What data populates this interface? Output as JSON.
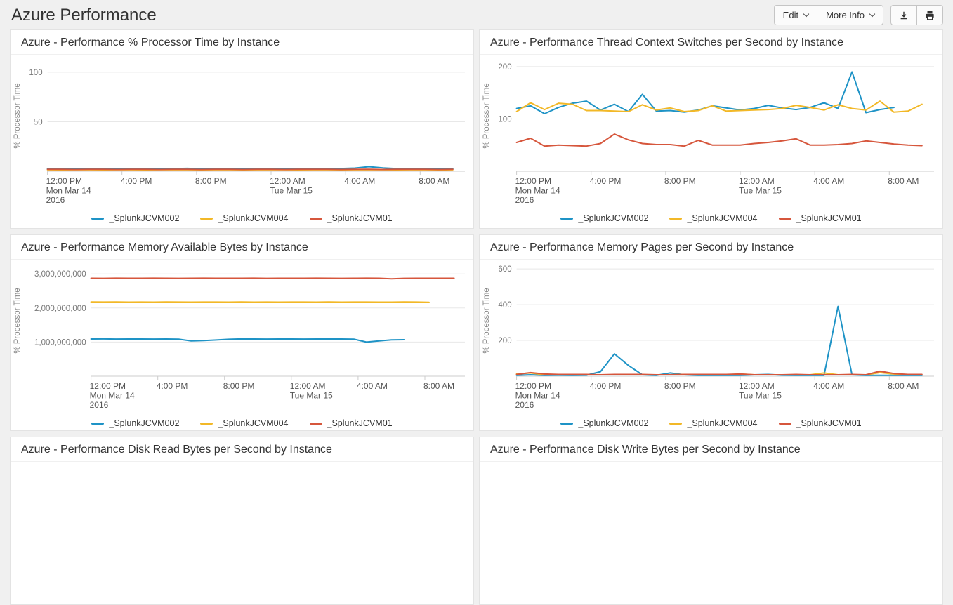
{
  "header": {
    "title": "Azure Performance",
    "edit_label": "Edit",
    "more_info_label": "More Info",
    "icons": {
      "caret": "chevron-down",
      "export": "download-icon",
      "print": "print-icon"
    }
  },
  "palette": {
    "series1": "#1e93c6",
    "series2": "#f2b827",
    "series3": "#d6563c"
  },
  "chart_data": [
    {
      "type": "line",
      "title": "Azure - Performance % Processor Time by Instance",
      "ylabel": "% Processor Time",
      "ylim": [
        0,
        112
      ],
      "yticks": [
        50,
        100
      ],
      "comma_format": false,
      "xlim": [
        0,
        22.4
      ],
      "xticks": [
        {
          "pos": 0,
          "lines": [
            "12:00 PM",
            "Mon Mar 14",
            "2016"
          ]
        },
        {
          "pos": 4,
          "lines": [
            "4:00 PM"
          ]
        },
        {
          "pos": 8,
          "lines": [
            "8:00 PM"
          ]
        },
        {
          "pos": 12,
          "lines": [
            "12:00 AM",
            "Tue Mar 15"
          ]
        },
        {
          "pos": 16,
          "lines": [
            "4:00 AM"
          ]
        },
        {
          "pos": 20,
          "lines": [
            "8:00 AM"
          ]
        }
      ],
      "series": [
        {
          "name": "_SplunkJCVM002",
          "color": "#1e93c6",
          "x_start": 0,
          "x_step": 0.75,
          "y": [
            2.5,
            2.7,
            2.4,
            2.6,
            2.5,
            2.8,
            2.5,
            2.6,
            2.4,
            2.6,
            2.9,
            2.5,
            2.6,
            2.5,
            2.7,
            2.5,
            2.6,
            2.5,
            2.7,
            2.6,
            2.5,
            2.8,
            3.2,
            4.6,
            3.4,
            2.7,
            2.6,
            2.5,
            2.6,
            2.6
          ]
        },
        {
          "name": "_SplunkJCVM004",
          "color": "#f2b827",
          "x_start": 0,
          "x_step": 0.75,
          "y": [
            1.5,
            1.4,
            1.5,
            1.5,
            1.4,
            1.5,
            1.5,
            1.4,
            1.5,
            1.5,
            1.5,
            1.4,
            1.5,
            1.5,
            1.4,
            1.5,
            1.5,
            1.5,
            1.4,
            1.5,
            1.5,
            1.4,
            1.5,
            1.5,
            1.5,
            1.4,
            1.5,
            1.5,
            1.4,
            1.5
          ]
        },
        {
          "name": "_SplunkJCVM01",
          "color": "#d6563c",
          "x_start": 0,
          "x_step": 0.75,
          "y": [
            1.9,
            2.0,
            1.8,
            1.9,
            1.9,
            1.8,
            2.0,
            1.9,
            1.8,
            1.9,
            1.9,
            1.8,
            1.9,
            2.0,
            1.8,
            1.9,
            1.9,
            1.8,
            1.9,
            1.9,
            2.0,
            1.8,
            1.9,
            1.9,
            1.8,
            1.9,
            2.0,
            1.9,
            1.8,
            1.9
          ]
        }
      ]
    },
    {
      "type": "line",
      "title": "Azure - Performance Thread Context Switches per Second by Instance",
      "ylabel": "% Processor Time",
      "ylim": [
        0,
        212
      ],
      "yticks": [
        100,
        200
      ],
      "comma_format": false,
      "xlim": [
        0,
        22.4
      ],
      "xticks": [
        {
          "pos": 0,
          "lines": [
            "12:00 PM",
            "Mon Mar 14",
            "2016"
          ]
        },
        {
          "pos": 4,
          "lines": [
            "4:00 PM"
          ]
        },
        {
          "pos": 8,
          "lines": [
            "8:00 PM"
          ]
        },
        {
          "pos": 12,
          "lines": [
            "12:00 AM",
            "Tue Mar 15"
          ]
        },
        {
          "pos": 16,
          "lines": [
            "4:00 AM"
          ]
        },
        {
          "pos": 20,
          "lines": [
            "8:00 AM"
          ]
        }
      ],
      "series": [
        {
          "name": "_SplunkJCVM002",
          "color": "#1e93c6",
          "x_start": 0,
          "x_step": 0.75,
          "y": [
            120,
            125,
            110,
            122,
            130,
            134,
            117,
            128,
            114,
            147,
            115,
            116,
            113,
            117,
            125,
            121,
            117,
            120,
            126,
            121,
            118,
            122,
            131,
            120,
            190,
            112,
            118,
            122
          ]
        },
        {
          "name": "_SplunkJCVM004",
          "color": "#f2b827",
          "x_start": 0,
          "x_step": 0.75,
          "y": [
            114,
            131,
            118,
            130,
            128,
            116,
            116,
            115,
            114,
            127,
            117,
            121,
            114,
            116,
            125,
            115,
            116,
            117,
            118,
            120,
            126,
            122,
            117,
            127,
            120,
            117,
            134,
            113,
            115,
            128
          ]
        },
        {
          "name": "_SplunkJCVM01",
          "color": "#d6563c",
          "x_start": 0,
          "x_step": 0.75,
          "y": [
            55,
            63,
            48,
            50,
            49,
            48,
            53,
            71,
            60,
            53,
            51,
            51,
            48,
            59,
            50,
            50,
            50,
            53,
            55,
            58,
            62,
            50,
            50,
            51,
            53,
            58,
            55,
            52,
            50,
            49
          ]
        }
      ]
    },
    {
      "type": "line",
      "title": "Azure - Performance Memory Available Bytes by Instance",
      "ylabel": "% Processor Time",
      "ylim": [
        0,
        3250000000
      ],
      "yticks": [
        1000000000,
        2000000000,
        3000000000
      ],
      "comma_format": true,
      "xlim": [
        0,
        22.4
      ],
      "xticks": [
        {
          "pos": 0,
          "lines": [
            "12:00 PM",
            "Mon Mar 14",
            "2016"
          ]
        },
        {
          "pos": 4,
          "lines": [
            "4:00 PM"
          ]
        },
        {
          "pos": 8,
          "lines": [
            "8:00 PM"
          ]
        },
        {
          "pos": 12,
          "lines": [
            "12:00 AM",
            "Tue Mar 15"
          ]
        },
        {
          "pos": 16,
          "lines": [
            "4:00 AM"
          ]
        },
        {
          "pos": 20,
          "lines": [
            "8:00 AM"
          ]
        }
      ],
      "series": [
        {
          "name": "_SplunkJCVM002",
          "color": "#1e93c6",
          "x_start": 0,
          "x_step": 0.75,
          "y": [
            1090000000,
            1092000000,
            1088000000,
            1090000000,
            1091000000,
            1089000000,
            1090000000,
            1085000000,
            1035000000,
            1042000000,
            1062000000,
            1082000000,
            1092000000,
            1090000000,
            1088000000,
            1091000000,
            1090000000,
            1089000000,
            1090000000,
            1091000000,
            1090000000,
            1086000000,
            1000000000,
            1032000000,
            1066000000,
            1070000000
          ]
        },
        {
          "name": "_SplunkJCVM004",
          "color": "#f2b827",
          "x_start": 0,
          "x_step": 0.75,
          "y": [
            2175000000,
            2172000000,
            2174000000,
            2170000000,
            2173000000,
            2171000000,
            2174000000,
            2172000000,
            2170000000,
            2173000000,
            2172000000,
            2170000000,
            2174000000,
            2171000000,
            2172000000,
            2170000000,
            2173000000,
            2172000000,
            2171000000,
            2174000000,
            2170000000,
            2172000000,
            2173000000,
            2170000000,
            2171000000,
            2174000000,
            2172000000,
            2165000000
          ]
        },
        {
          "name": "_SplunkJCVM01",
          "color": "#d6563c",
          "x_start": 0,
          "x_step": 0.75,
          "y": [
            2870000000,
            2868000000,
            2872000000,
            2870000000,
            2869000000,
            2871000000,
            2870000000,
            2868000000,
            2870000000,
            2872000000,
            2870000000,
            2869000000,
            2870000000,
            2871000000,
            2868000000,
            2870000000,
            2870000000,
            2869000000,
            2872000000,
            2870000000,
            2868000000,
            2870000000,
            2871000000,
            2869000000,
            2855000000,
            2868000000,
            2870000000,
            2869000000,
            2870000000,
            2870000000
          ]
        }
      ]
    },
    {
      "type": "line",
      "title": "Azure - Performance Memory Pages per Second by Instance",
      "ylabel": "% Processor Time",
      "ylim": [
        0,
        620
      ],
      "yticks": [
        200,
        400,
        600
      ],
      "comma_format": false,
      "xlim": [
        0,
        22.4
      ],
      "xticks": [
        {
          "pos": 0,
          "lines": [
            "12:00 PM",
            "Mon Mar 14",
            "2016"
          ]
        },
        {
          "pos": 4,
          "lines": [
            "4:00 PM"
          ]
        },
        {
          "pos": 8,
          "lines": [
            "8:00 PM"
          ]
        },
        {
          "pos": 12,
          "lines": [
            "12:00 AM",
            "Tue Mar 15"
          ]
        },
        {
          "pos": 16,
          "lines": [
            "4:00 AM"
          ]
        },
        {
          "pos": 20,
          "lines": [
            "8:00 AM"
          ]
        }
      ],
      "series": [
        {
          "name": "_SplunkJCVM002",
          "color": "#1e93c6",
          "x_start": 0,
          "x_step": 0.75,
          "y": [
            5,
            8,
            5,
            6,
            5,
            6,
            25,
            125,
            60,
            8,
            5,
            18,
            8,
            5,
            5,
            5,
            5,
            8,
            10,
            6,
            5,
            5,
            5,
            390,
            8,
            5,
            5,
            5,
            5,
            5
          ]
        },
        {
          "name": "_SplunkJCVM004",
          "color": "#f2b827",
          "x_start": 0,
          "x_step": 0.75,
          "y": [
            12,
            18,
            8,
            8,
            10,
            8,
            8,
            8,
            8,
            8,
            8,
            8,
            10,
            8,
            8,
            8,
            12,
            8,
            8,
            8,
            8,
            8,
            18,
            8,
            8,
            8,
            20,
            12,
            8,
            8
          ]
        },
        {
          "name": "_SplunkJCVM01",
          "color": "#d6563c",
          "x_start": 0,
          "x_step": 0.75,
          "y": [
            10,
            20,
            12,
            10,
            10,
            10,
            8,
            10,
            10,
            10,
            8,
            8,
            10,
            10,
            10,
            10,
            12,
            8,
            8,
            8,
            10,
            8,
            8,
            8,
            10,
            8,
            28,
            15,
            10,
            10
          ]
        }
      ]
    },
    {
      "type": "line",
      "title": "Azure - Performance Disk Read Bytes per Second by Instance"
    },
    {
      "type": "line",
      "title": "Azure - Performance Disk Write Bytes per Second by Instance"
    }
  ]
}
